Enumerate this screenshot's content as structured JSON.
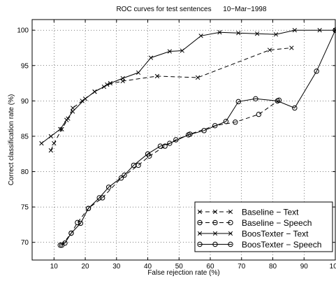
{
  "chart_data": {
    "type": "line",
    "title": "ROC curves for test sentences      10−Mar−1998",
    "xlabel": "False rejection rate (%)",
    "ylabel": "Correct classification rate (%)",
    "xlim": [
      3,
      100
    ],
    "ylim": [
      67.5,
      101.5
    ],
    "xticks": [
      10,
      20,
      30,
      40,
      50,
      60,
      70,
      80,
      90,
      100
    ],
    "yticks": [
      70,
      75,
      80,
      85,
      90,
      95,
      100
    ],
    "grid": true,
    "legend_position": "bottom-right",
    "series": [
      {
        "name": "Baseline − Text",
        "line": "dashed",
        "marker": "x",
        "x": [
          9,
          10,
          12.5,
          14.5,
          16,
          19,
          23,
          27,
          32,
          43,
          56,
          79,
          86
        ],
        "y": [
          83,
          84,
          86,
          87.5,
          89,
          90,
          91.3,
          92.3,
          92.8,
          93.5,
          93.3,
          97.2,
          97.5
        ]
      },
      {
        "name": "Baseline − Speech",
        "line": "dashed",
        "marker": "o",
        "x": [
          12.5,
          15.5,
          17.5,
          21,
          25.5,
          31.5,
          37,
          40.5,
          45.5,
          49,
          53.5,
          61.5,
          68,
          75.5,
          82
        ],
        "y": [
          69.6,
          71.3,
          72.8,
          74.8,
          76.3,
          79.1,
          80.9,
          82.2,
          83.6,
          84.5,
          85.3,
          86.5,
          87.0,
          88.1,
          90.1
        ]
      },
      {
        "name": "BoosTexter − Text",
        "line": "solid",
        "marker": "x",
        "x": [
          6,
          9,
          12,
          14,
          16,
          20,
          23,
          26,
          28,
          32,
          37,
          41,
          47,
          51,
          57,
          63,
          69,
          75,
          81,
          87,
          95,
          100
        ],
        "y": [
          84.0,
          85.0,
          86.0,
          87.3,
          88.5,
          90.3,
          91.3,
          92.0,
          92.5,
          93.2,
          94.0,
          96.1,
          97.0,
          97.1,
          99.2,
          99.7,
          99.6,
          99.5,
          99.4,
          100,
          100,
          100
        ]
      },
      {
        "name": "BoosTexter − Speech",
        "line": "solid",
        "marker": "o",
        "x": [
          12,
          13.5,
          15.5,
          18.5,
          21,
          24.5,
          27.5,
          32.5,
          35.5,
          40,
          44,
          47,
          53,
          58,
          65,
          69,
          74.5,
          81.5,
          87,
          94,
          100
        ],
        "y": [
          69.6,
          69.9,
          71.3,
          72.7,
          74.8,
          76.3,
          77.8,
          79.5,
          80.9,
          82.5,
          83.6,
          84.0,
          85.2,
          85.8,
          87.1,
          89.9,
          90.3,
          90.0,
          89.0,
          94.2,
          100
        ]
      }
    ]
  }
}
